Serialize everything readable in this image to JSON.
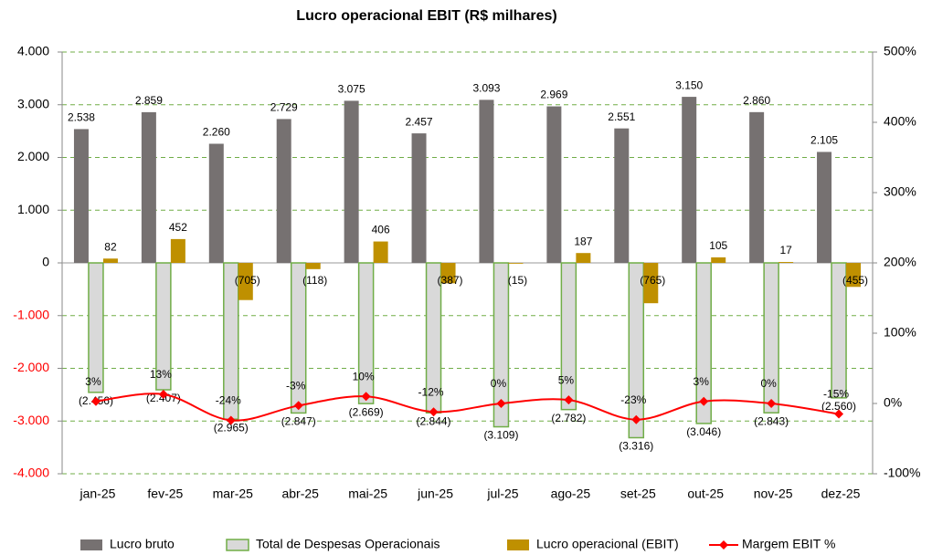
{
  "chart_data": {
    "type": "bar",
    "title": "Lucro operacional EBIT (R$ milhares)",
    "categories": [
      "jan-25",
      "fev-25",
      "mar-25",
      "abr-25",
      "mai-25",
      "jun-25",
      "jul-25",
      "ago-25",
      "set-25",
      "out-25",
      "nov-25",
      "dez-25"
    ],
    "series": [
      {
        "name": "Lucro bruto",
        "type": "bar",
        "color": "#767171",
        "values": [
          2538,
          2859,
          2260,
          2729,
          3075,
          2457,
          3093,
          2969,
          2551,
          3150,
          2860,
          2105
        ],
        "value_labels": [
          "2.538",
          "2.859",
          "2.260",
          "2.729",
          "3.075",
          "2.457",
          "3.093",
          "2.969",
          "2.551",
          "3.150",
          "2.860",
          "2.105"
        ]
      },
      {
        "name": "Total de Despesas Operacionais",
        "type": "bar",
        "color": "#d9d9d9",
        "edge_color": "#70ad47",
        "values": [
          -2456,
          -2407,
          -2965,
          -2847,
          -2669,
          -2844,
          -3109,
          -2782,
          -3316,
          -3046,
          -2843,
          -2560
        ],
        "value_labels": [
          "(2.456)",
          "(2.407)",
          "(2.965)",
          "(2.847)",
          "(2.669)",
          "(2.844)",
          "(3.109)",
          "(2.782)",
          "(3.316)",
          "(3.046)",
          "(2.843)",
          "(2.560)"
        ]
      },
      {
        "name": "Lucro operacional (EBIT)",
        "type": "bar",
        "color": "#bf9000",
        "values": [
          82,
          452,
          -705,
          -118,
          406,
          -387,
          -15,
          187,
          -765,
          105,
          17,
          -455
        ],
        "value_labels": [
          "82",
          "452",
          "(705)",
          "(118)",
          "406",
          "(387)",
          "(15)",
          "187",
          "(765)",
          "105",
          "17",
          "(455)"
        ]
      },
      {
        "name": "Margem EBIT %",
        "type": "line",
        "axis": "y2",
        "color": "#ff0000",
        "values": [
          3,
          13,
          -24,
          -3,
          10,
          -12,
          0,
          5,
          -23,
          3,
          0,
          -15
        ],
        "value_labels": [
          "3%",
          "13%",
          "-24%",
          "-3%",
          "10%",
          "-12%",
          "0%",
          "5%",
          "-23%",
          "3%",
          "0%",
          "-15%"
        ]
      }
    ],
    "ylim": [
      -4000,
      4000
    ],
    "yticks": [
      {
        "value": -4000,
        "label": "-4.000"
      },
      {
        "value": -3000,
        "label": "-3.000"
      },
      {
        "value": -2000,
        "label": "-2.000"
      },
      {
        "value": -1000,
        "label": "-1.000"
      },
      0,
      {
        "value": 1000,
        "label": "1.000"
      },
      {
        "value": 2000,
        "label": "2.000"
      },
      {
        "value": 3000,
        "label": "3.000"
      },
      {
        "value": 4000,
        "label": "4.000"
      }
    ],
    "y2lim": [
      -100,
      500
    ],
    "y2ticks": [
      {
        "value": -100,
        "label": "-100%"
      },
      {
        "value": 0,
        "label": "0%"
      },
      {
        "value": 100,
        "label": "100%"
      },
      {
        "value": 200,
        "label": "200%"
      },
      {
        "value": 300,
        "label": "300%"
      },
      {
        "value": 400,
        "label": "400%"
      },
      {
        "value": 500,
        "label": "500%"
      }
    ],
    "grid": true,
    "legend": "bottom"
  }
}
